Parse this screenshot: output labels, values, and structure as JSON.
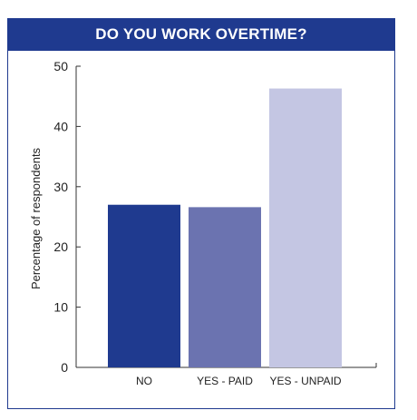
{
  "chart_data": {
    "type": "bar",
    "title": "DO YOU WORK OVERTIME?",
    "ylabel": "Percentage of respondents",
    "xlabel": "",
    "categories": [
      "NO",
      "YES - PAID",
      "YES - UNPAID"
    ],
    "values": [
      27,
      26.6,
      46.3
    ],
    "colors": [
      "#1f3a8f",
      "#6b73b0",
      "#c4c6e3"
    ],
    "ylim": [
      0,
      50
    ],
    "yticks": [
      0,
      10,
      20,
      30,
      40,
      50
    ],
    "grid": false,
    "legend": "none"
  }
}
